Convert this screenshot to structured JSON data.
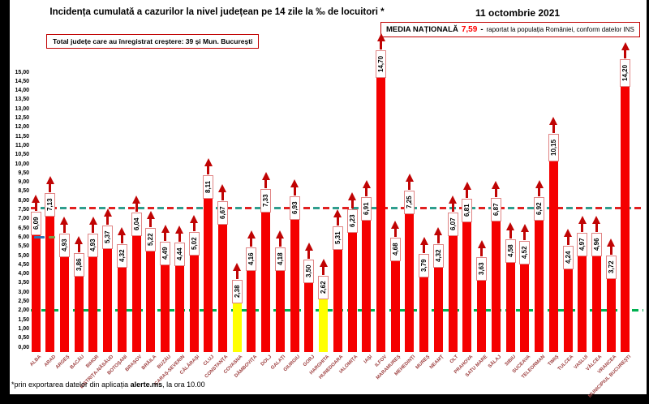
{
  "title": "Incidența cumulată a cazurilor la nivel județean pe 14 zile la ‰ de locuitori *",
  "date": "11 octombrie 2021",
  "total_box": {
    "text": "Total județe care au înregistrat creștere:  39 și Mun. București"
  },
  "media_box": {
    "label": "MEDIA NAȚIONALĂ",
    "value": "7,59",
    "dash": "-",
    "suffix": "raportat la populația României, conform datelor INS"
  },
  "footnote": {
    "prefix": "*prin exportarea datelor din aplicația ",
    "bold": "alerte.ms",
    "suffix": ", la ora 10.00"
  },
  "chart_data": {
    "type": "bar",
    "title": "Incidența cumulată a cazurilor la nivel județean pe 14 zile la ‰ de locuitori *",
    "xlabel": "",
    "ylabel": "",
    "ylim": [
      0,
      15
    ],
    "ytick_step": 0.5,
    "grid": false,
    "legend": "none",
    "bar_color": "#f40000",
    "highlight_color": "#ffff00",
    "highlight_indices": [
      14,
      20
    ],
    "national_average": 7.59,
    "categories": [
      "ALBA",
      "ARAD",
      "ARGEȘ",
      "BACĂU",
      "BIHOR",
      "BISTRIȚA-NĂSĂUD",
      "BOTOȘANI",
      "BRAȘOV",
      "BRĂILA",
      "BUZĂU",
      "CARAȘ-SEVERIN",
      "CĂLĂRAȘI",
      "CLUJ",
      "CONSTANȚA",
      "COVASNA",
      "DÂMBOVIȚA",
      "DOLJ",
      "GALAȚI",
      "GIURGIU",
      "GORJ",
      "HARGHITA",
      "HUNEDOARA",
      "IALOMIȚA",
      "IAȘI",
      "ILFOV",
      "MARAMUREȘ",
      "MEHEDINȚI",
      "MUREȘ",
      "NEAMȚ",
      "OLT",
      "PRAHOVA",
      "SATU MARE",
      "SĂLAJ",
      "SIBIU",
      "SUCEAVA",
      "TELEORMAN",
      "TIMIȘ",
      "TULCEA",
      "VASLUI",
      "VÂLCEA",
      "VRANCEA",
      "MUNICIPIUL BUCUREȘTI"
    ],
    "values": [
      6.09,
      7.13,
      4.93,
      3.86,
      4.93,
      5.37,
      4.32,
      6.04,
      5.22,
      4.49,
      4.44,
      5.02,
      8.11,
      6.67,
      2.38,
      4.16,
      7.33,
      4.18,
      6.93,
      3.5,
      2.62,
      5.31,
      6.23,
      6.91,
      14.7,
      4.68,
      7.25,
      3.79,
      4.32,
      6.07,
      6.81,
      3.63,
      6.87,
      4.58,
      4.52,
      6.92,
      10.15,
      4.24,
      4.97,
      4.96,
      3.72,
      14.2
    ],
    "reference_lines": [
      {
        "value": 7.59,
        "style": "dashed",
        "colors": [
          "#e02020",
          "#2e9e8e"
        ]
      },
      {
        "value": 2.0,
        "style": "dashed",
        "colors": [
          "#00b050"
        ]
      }
    ],
    "point_markers": [
      {
        "category_index": 0,
        "value": 6.0,
        "color": "#2e75b6",
        "width": 13
      },
      {
        "category_index": 1,
        "value": 6.0,
        "color": "#7f9a48",
        "width": 8
      }
    ]
  }
}
